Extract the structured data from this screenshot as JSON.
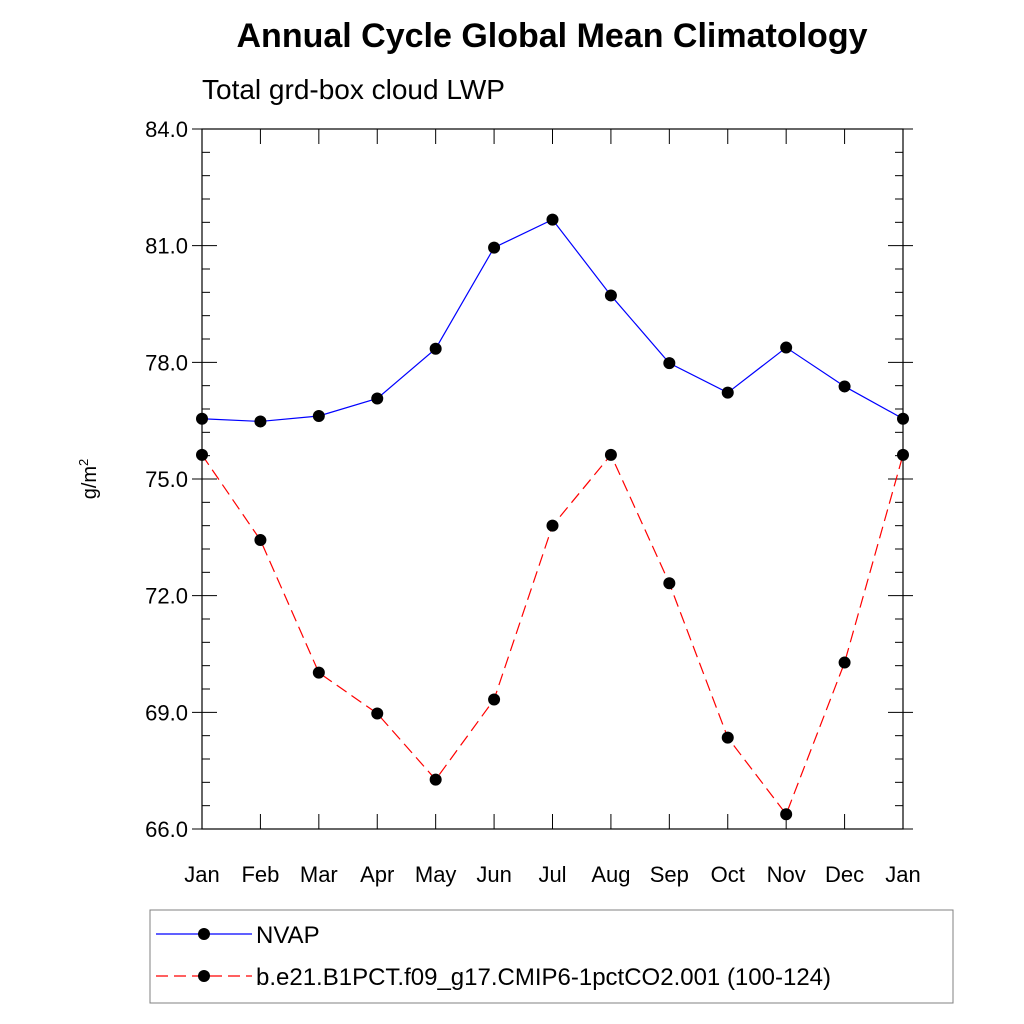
{
  "chart_data": {
    "type": "line",
    "title": "Annual Cycle Global Mean Climatology",
    "subtitle": "Total grd-box cloud LWP",
    "xlabel": "",
    "ylabel": "g/m",
    "ylabel_superscript": "2",
    "categories": [
      "Jan",
      "Feb",
      "Mar",
      "Apr",
      "May",
      "Jun",
      "Jul",
      "Aug",
      "Sep",
      "Oct",
      "Nov",
      "Dec",
      "Jan"
    ],
    "ylim": [
      66.0,
      84.0
    ],
    "yticks": [
      "84.0",
      "81.0",
      "78.0",
      "75.0",
      "72.0",
      "69.0",
      "66.0"
    ],
    "ytick_values": [
      84,
      81,
      78,
      75,
      72,
      69,
      66
    ],
    "series": [
      {
        "name": "NVAP",
        "color": "#0000ff",
        "dash": "solid",
        "values": [
          76.55,
          76.48,
          76.62,
          77.07,
          78.35,
          80.95,
          81.67,
          79.72,
          77.98,
          77.22,
          78.38,
          77.38,
          76.55
        ]
      },
      {
        "name": "b.e21.B1PCT.f09_g17.CMIP6-1pctCO2.001 (100-124)",
        "color": "#ff0000",
        "dash": "dashed",
        "values": [
          75.62,
          73.43,
          70.02,
          68.97,
          67.27,
          69.33,
          73.8,
          75.62,
          72.32,
          68.35,
          66.38,
          70.28,
          75.62
        ]
      }
    ],
    "grid": false,
    "legend": "bottom"
  }
}
